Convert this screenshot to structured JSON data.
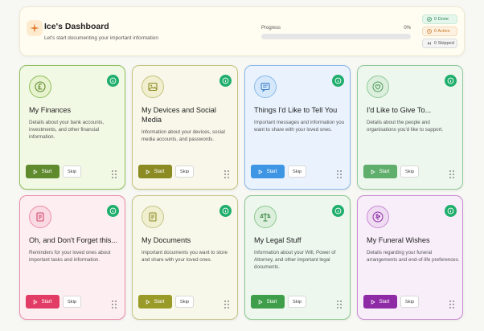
{
  "header": {
    "title": "Ice's Dashboard",
    "subtitle": "Let's start documenting your important information",
    "progress_label": "Progress",
    "progress_pct_text": "0%",
    "progress_fraction": 0,
    "stats": {
      "done": "0 Done",
      "active": "0 Active",
      "skipped": "0 Skipped"
    }
  },
  "buttons": {
    "start": "Start",
    "skip": "Skip"
  },
  "cards": [
    {
      "title": "My Finances",
      "desc": "Details about your bank accounts, investments, and other financial information.",
      "icon": "pound-icon"
    },
    {
      "title": "My Devices and Social Media",
      "desc": "Information about your devices, social media accounts, and passwords.",
      "icon": "image-icon"
    },
    {
      "title": "Things I'd Like to Tell You",
      "desc": "Important messages and information you want to share with your loved ones.",
      "icon": "message-icon"
    },
    {
      "title": "I'd Like to Give To...",
      "desc": "Details about the people and organisations you'd like to support.",
      "icon": "heart-icon"
    },
    {
      "title": "Oh, and Don't Forget this...",
      "desc": "Reminders for your loved ones about important tasks and information.",
      "icon": "document-icon"
    },
    {
      "title": "My Documents",
      "desc": "Important documents you want to store and share with your loved ones.",
      "icon": "document-icon"
    },
    {
      "title": "My Legal Stuff",
      "desc": "Information about your Will, Power of Attorney, and other important legal documents.",
      "icon": "scales-icon"
    },
    {
      "title": "My Funeral Wishes",
      "desc": "Details regarding your funeral arrangements and end-of-life preferences.",
      "icon": "flower-icon"
    }
  ],
  "colors": {
    "info": "#1fae6c",
    "finances": {
      "bg": "#f1f8e4",
      "border": "#8fbf5a",
      "btn": "#5f8a2e"
    },
    "devices": {
      "bg": "#f8f7ea",
      "border": "#c5c37e",
      "btn": "#8c8a22"
    },
    "tell": {
      "bg": "#eaf3fd",
      "border": "#8ab8e8",
      "btn": "#3d95e3"
    },
    "give": {
      "bg": "#edf7ee",
      "border": "#90c998",
      "btn": "#5fae6c"
    },
    "forget": {
      "bg": "#fdeef1",
      "border": "#ec8ea6",
      "btn": "#e23c66"
    },
    "documents": {
      "bg": "#f8f8ea",
      "border": "#c6c48a",
      "btn": "#9a9a28"
    },
    "legal": {
      "bg": "#edf7ee",
      "border": "#8cc88f",
      "btn": "#3e9e4a"
    },
    "funeral": {
      "bg": "#f8eefa",
      "border": "#c88ad3",
      "btn": "#8f2aa6"
    }
  }
}
